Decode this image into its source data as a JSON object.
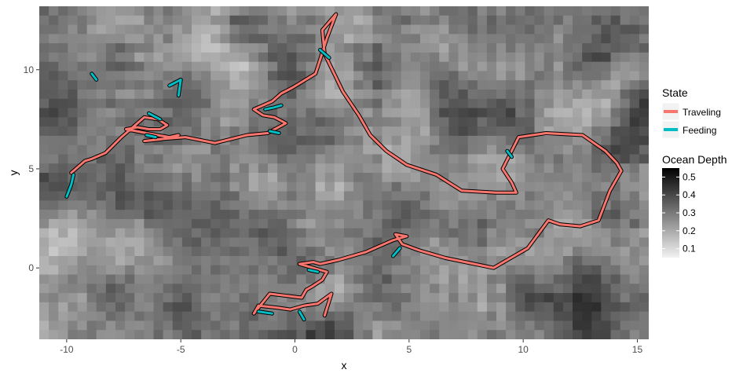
{
  "chart_data": {
    "type": "line",
    "title": "",
    "xlabel": "x",
    "ylabel": "y",
    "xlim": [
      -11.2,
      15.5
    ],
    "ylim": [
      -3.6,
      13.2
    ],
    "x_ticks": [
      -10,
      -5,
      0,
      5,
      10,
      15
    ],
    "y_ticks": [
      0,
      5,
      10
    ],
    "grid": false,
    "background": {
      "name": "Ocean Depth",
      "type": "heatmap",
      "scale": [
        0.05,
        0.55
      ],
      "colorbar_ticks": [
        0.1,
        0.2,
        0.3,
        0.4,
        0.5
      ],
      "low_color": "#f2f2f2",
      "high_color": "#000000"
    },
    "legend": {
      "placement": "right",
      "title": "State",
      "items": [
        {
          "label": "Traveling",
          "color": "#f8766d"
        },
        {
          "label": "Feeding",
          "color": "#00bfc4"
        }
      ]
    },
    "series": [
      {
        "name": "Traveling",
        "color": "#f8766d",
        "x": [
          -9.8,
          -9.2,
          -8.9,
          -8.3,
          -7.6,
          -7.0,
          -6.6,
          -6.0,
          -5.6,
          -5.9,
          -6.4,
          -6.9,
          -7.4,
          -6.5,
          -5.5,
          -5.1,
          -5.8,
          -6.6,
          -5.9,
          -4.8,
          -3.5,
          -2.1,
          -1.2,
          -0.4,
          -0.9,
          -1.4,
          -1.8,
          -1.0,
          -0.6,
          -0.1,
          0.9,
          1.1,
          1.4,
          1.8,
          1.2,
          1.3,
          2.1,
          2.8,
          3.3,
          4.0,
          4.9,
          6.2,
          7.3,
          8.8,
          9.7,
          9.5,
          9.1,
          9.8,
          11.0,
          12.6,
          13.6,
          14.1,
          14.3,
          13.8,
          13.3,
          12.5,
          11.6,
          11.1,
          10.2,
          8.7,
          6.6,
          5.4,
          4.7,
          4.4,
          4.9,
          4.3,
          3.1,
          1.9,
          1.1,
          0.8,
          0.2,
          1.4,
          1.2,
          0.8,
          0.5,
          0.3,
          -1.1,
          -1.8,
          -1.6,
          -0.8,
          -0.2,
          0.4,
          1.0,
          1.6,
          1.3
        ],
        "y": [
          4.8,
          5.4,
          5.5,
          5.8,
          6.6,
          7.2,
          7.6,
          7.5,
          7.2,
          7.0,
          7.0,
          7.1,
          7.0,
          6.8,
          6.6,
          6.7,
          6.5,
          6.4,
          6.5,
          6.6,
          6.3,
          6.7,
          6.8,
          7.3,
          7.6,
          7.7,
          8.0,
          8.4,
          8.8,
          9.1,
          9.8,
          10.5,
          11.6,
          12.8,
          12.0,
          10.8,
          8.9,
          7.7,
          6.7,
          5.9,
          5.2,
          4.7,
          3.9,
          3.8,
          3.8,
          4.3,
          5.0,
          6.6,
          6.8,
          6.7,
          5.9,
          5.3,
          4.9,
          3.9,
          2.4,
          2.1,
          2.2,
          2.4,
          1.0,
          0.0,
          0.5,
          0.9,
          1.2,
          1.7,
          1.6,
          1.4,
          0.8,
          0.4,
          0.2,
          0.3,
          0.2,
          -0.2,
          -0.6,
          -0.9,
          -1.1,
          -1.5,
          -1.3,
          -2.3,
          -1.9,
          -2.0,
          -2.1,
          -1.9,
          -1.8,
          -1.3,
          -2.4
        ]
      },
      {
        "name": "Feeding",
        "color": "#00bfc4",
        "segments": [
          {
            "x": [
              -9.7,
              -9.8,
              -10.0
            ],
            "y": [
              4.7,
              4.2,
              3.6
            ]
          },
          {
            "x": [
              -8.9,
              -8.7
            ],
            "y": [
              9.8,
              9.5
            ]
          },
          {
            "x": [
              -5.5,
              -5.0,
              -5.1
            ],
            "y": [
              9.2,
              9.5,
              8.7
            ]
          },
          {
            "x": [
              -6.4,
              -5.9
            ],
            "y": [
              7.8,
              7.5
            ]
          },
          {
            "x": [
              -6.5,
              -6.1
            ],
            "y": [
              6.7,
              6.6
            ]
          },
          {
            "x": [
              -1.3,
              -0.9,
              -0.6
            ],
            "y": [
              8.0,
              8.1,
              8.2
            ]
          },
          {
            "x": [
              -1.1,
              -0.7
            ],
            "y": [
              6.9,
              6.8
            ]
          },
          {
            "x": [
              1.1,
              1.5
            ],
            "y": [
              11.0,
              10.6
            ]
          },
          {
            "x": [
              9.3,
              9.5
            ],
            "y": [
              5.9,
              5.6
            ]
          },
          {
            "x": [
              4.3,
              4.6
            ],
            "y": [
              0.6,
              1.0
            ]
          },
          {
            "x": [
              0.6,
              1.0
            ],
            "y": [
              -0.1,
              -0.2
            ]
          },
          {
            "x": [
              -1.6,
              -1.0
            ],
            "y": [
              -2.2,
              -2.3
            ]
          },
          {
            "x": [
              0.2,
              0.4
            ],
            "y": [
              -2.2,
              -2.6
            ]
          }
        ]
      }
    ]
  }
}
